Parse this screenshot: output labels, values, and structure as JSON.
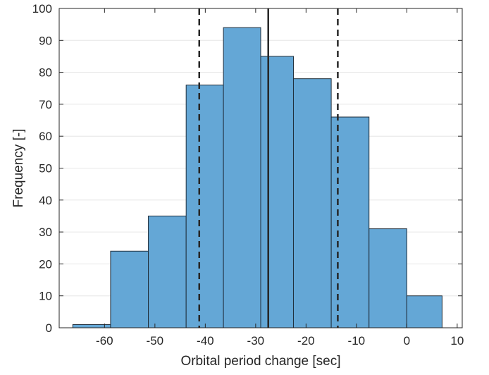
{
  "chart_data": {
    "type": "bar",
    "subtype": "histogram",
    "xlabel": "Orbital period change [sec]",
    "ylabel": "Frequency [-]",
    "xlim": [
      -69,
      11
    ],
    "ylim": [
      0,
      100
    ],
    "xticks": [
      -60,
      -50,
      -40,
      -30,
      -20,
      -10,
      0,
      10
    ],
    "yticks": [
      0,
      10,
      20,
      30,
      40,
      50,
      60,
      70,
      80,
      90,
      100
    ],
    "grid": "horizontal",
    "bins": [
      {
        "x0": -66.3,
        "x1": -58.8,
        "value": 1
      },
      {
        "x0": -58.8,
        "x1": -51.3,
        "value": 24
      },
      {
        "x0": -51.3,
        "x1": -43.8,
        "value": 35
      },
      {
        "x0": -43.8,
        "x1": -36.4,
        "value": 76
      },
      {
        "x0": -36.4,
        "x1": -29.0,
        "value": 94
      },
      {
        "x0": -29.0,
        "x1": -22.5,
        "value": 85
      },
      {
        "x0": -22.5,
        "x1": -15.0,
        "value": 78
      },
      {
        "x0": -15.0,
        "x1": -7.5,
        "value": 66
      },
      {
        "x0": -7.5,
        "x1": 0.0,
        "value": 31
      },
      {
        "x0": 0.0,
        "x1": 7.0,
        "value": 10
      }
    ],
    "reference_lines": [
      {
        "x": -27.5,
        "style": "solid"
      },
      {
        "x": -41.2,
        "style": "dashed"
      },
      {
        "x": -13.7,
        "style": "dashed"
      }
    ],
    "colors": {
      "bar_fill": "#64a7d6",
      "bar_edge": "#1f2d3a",
      "line": "#262626",
      "grid": "#e6e6e6"
    }
  }
}
